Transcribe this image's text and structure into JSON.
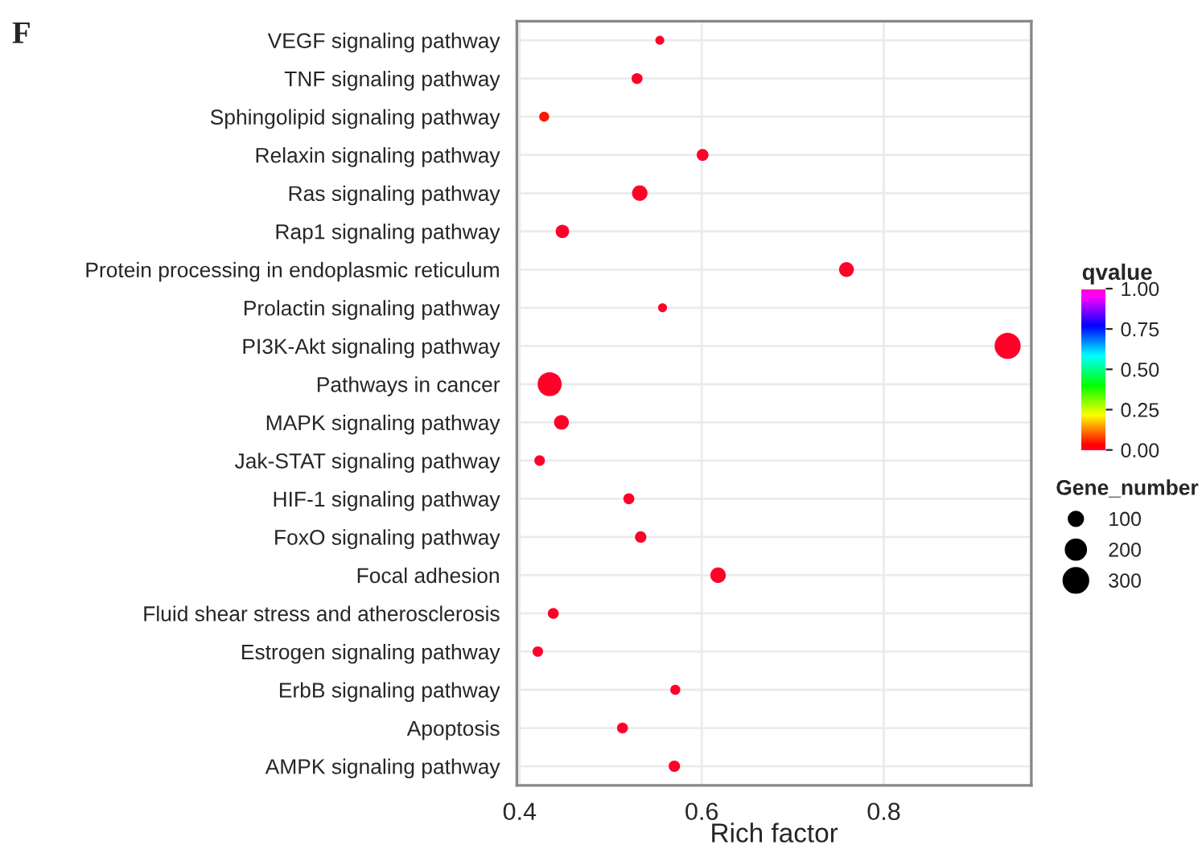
{
  "chart_data": {
    "type": "bubble",
    "title": "F",
    "xlabel": "Rich factor",
    "clabel": "qvalue",
    "legend_title": "Gene_number",
    "categories": [
      "VEGF signaling pathway",
      "TNF signaling pathway",
      "Sphingolipid signaling pathway",
      "Relaxin signaling pathway",
      "Ras signaling pathway",
      "Rap1 signaling pathway",
      "Protein processing in endoplasmic reticulum",
      "Prolactin signaling pathway",
      "PI3K-Akt signaling pathway",
      "Pathways in cancer",
      "MAPK signaling pathway",
      "Jak-STAT signaling pathway",
      "HIF-1 signaling pathway",
      "FoxO signaling pathway",
      "Focal adhesion",
      "Fluid shear stress and atherosclerosis",
      "Estrogen signaling pathway",
      "ErbB signaling pathway",
      "Apoptosis",
      "AMPK signaling pathway"
    ],
    "orientation": "horizontal",
    "values": [
      0.554,
      0.529,
      0.427,
      0.601,
      0.532,
      0.447,
      0.759,
      0.557,
      0.936,
      0.433,
      0.446,
      0.422,
      0.52,
      0.533,
      0.618,
      0.437,
      0.42,
      0.571,
      0.513,
      0.57
    ],
    "sizes": [
      40,
      60,
      50,
      70,
      120,
      90,
      110,
      40,
      340,
      290,
      110,
      55,
      60,
      65,
      120,
      60,
      55,
      50,
      60,
      65
    ],
    "cvalues": [
      0,
      0,
      0.05,
      0,
      0,
      0,
      0,
      0,
      0,
      0,
      0,
      0,
      0,
      0,
      0,
      0,
      0,
      0,
      0,
      0
    ],
    "size_legend": [
      100,
      200,
      300
    ],
    "clim": [
      0,
      1
    ],
    "cticks": [
      {
        "value": 0,
        "label": "0.00"
      },
      {
        "value": 0.25,
        "label": "0.25"
      },
      {
        "value": 0.5,
        "label": "0.50"
      },
      {
        "value": 0.75,
        "label": "0.75"
      },
      {
        "value": 1,
        "label": "1.00"
      }
    ],
    "xlim": [
      0.397,
      0.962
    ],
    "xticks": [
      {
        "value": 0.4,
        "label": "0.4"
      },
      {
        "value": 0.6,
        "label": "0.6"
      },
      {
        "value": 0.8,
        "label": "0.8"
      }
    ],
    "grid": true
  }
}
